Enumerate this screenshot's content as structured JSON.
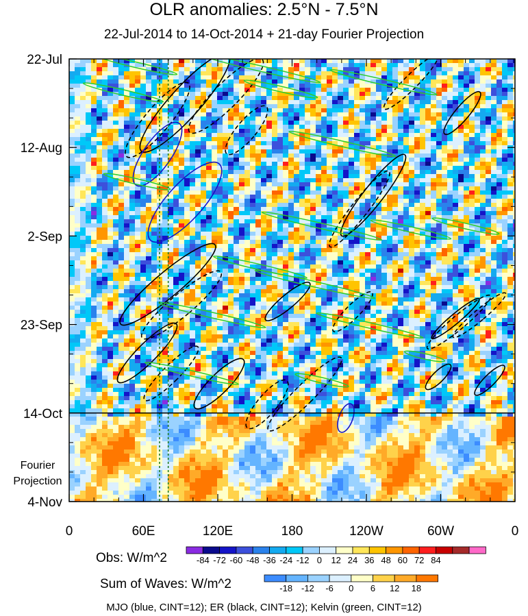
{
  "title": "OLR anomalies: 2.5°N - 7.5°N",
  "subtitle": "22-Jul-2014 to 14-Oct-2014 + 21-day Fourier Projection",
  "footer": "MJO (blue, CINT=12); ER (black, CINT=12); Kelvin (green, CINT=12)",
  "chart_data": {
    "type": "heatmap",
    "title": "OLR anomalies: 2.5°N - 7.5°N",
    "x_axis": {
      "label": "",
      "ticks": [
        "0",
        "60E",
        "120E",
        "180",
        "120W",
        "60W",
        "0"
      ],
      "tick_values": [
        0,
        60,
        120,
        180,
        240,
        300,
        360
      ],
      "range": [
        0,
        360
      ]
    },
    "y_axis": {
      "label": "",
      "ticks": [
        "22-Jul",
        "12-Aug",
        "2-Sep",
        "23-Sep",
        "14-Oct",
        "4-Nov"
      ],
      "tick_values": [
        "2014-07-22",
        "2014-08-12",
        "2014-09-02",
        "2014-09-23",
        "2014-10-14",
        "2014-11-04"
      ],
      "range": [
        "2014-07-22",
        "2014-11-04"
      ],
      "direction": "down"
    },
    "observation_end": "2014-10-14",
    "projection_label": "Fourier\nProjection",
    "reference_meridians": [
      73,
      80
    ],
    "legend_obs": {
      "label": "Obs: W/m^2",
      "levels": [
        -84,
        -72,
        -60,
        -48,
        -36,
        -24,
        -12,
        0,
        12,
        24,
        36,
        48,
        60,
        72,
        84
      ],
      "colors": [
        "#8a2be2",
        "#0a0a8c",
        "#1414c8",
        "#3c50dc",
        "#2a82ec",
        "#14aaf0",
        "#00c8f8",
        "#9ad2ff",
        "#dcf0ff",
        "#ffffc8",
        "#ffe65a",
        "#ffc400",
        "#ff9600",
        "#ff6400",
        "#ff1e1e",
        "#c80000",
        "#a52a2a",
        "#ff69c8"
      ]
    },
    "legend_waves": {
      "label": "Sum of Waves: W/m^2",
      "levels": [
        -18,
        -12,
        -6,
        0,
        6,
        12,
        18
      ],
      "colors": [
        "#3c8cff",
        "#64b4ff",
        "#9ad2ff",
        "#dcf0ff",
        "#ffffc8",
        "#ffd24a",
        "#ffaa28",
        "#ff7800"
      ]
    },
    "contours": [
      {
        "name": "MJO",
        "color": "blue",
        "cint": 12
      },
      {
        "name": "ER",
        "color": "black",
        "cint": 12
      },
      {
        "name": "Kelvin",
        "color": "green",
        "cint": 12
      }
    ],
    "grid": false
  }
}
